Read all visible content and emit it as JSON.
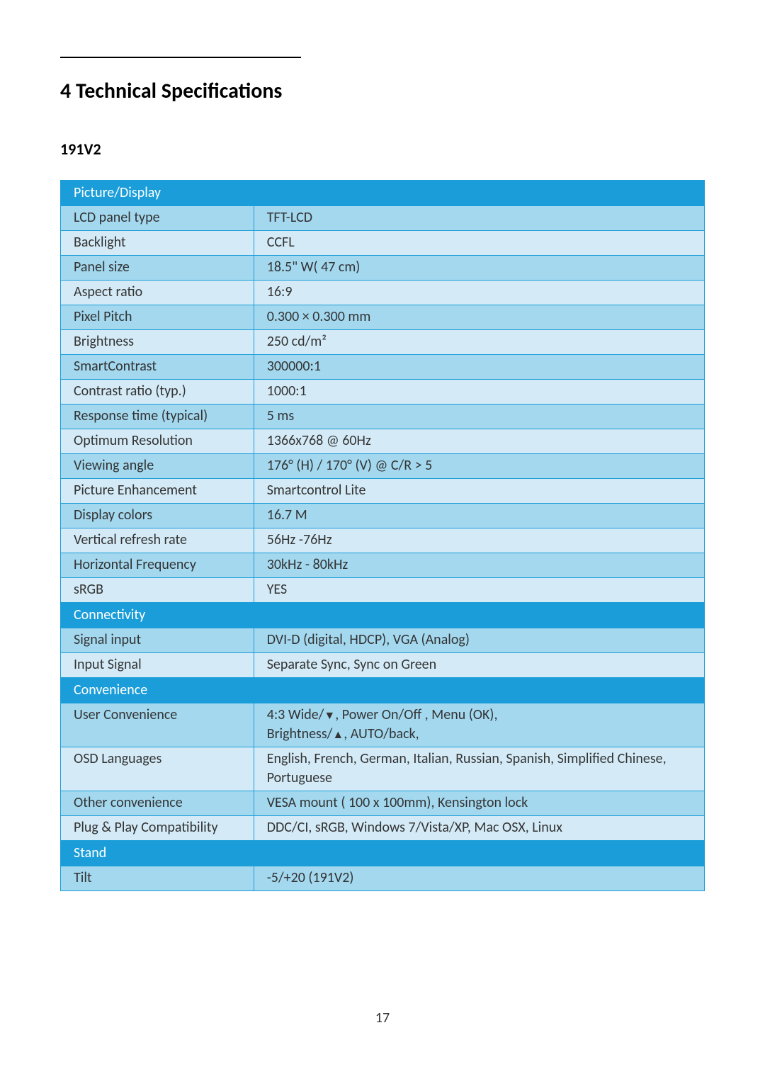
{
  "heading": "4  Technical Specifications",
  "model": "191V2",
  "pageNumber": "17",
  "colors": {
    "border": "#1a9dd9",
    "header_bg": "#1a9dd9",
    "header_text": "#ffffff",
    "row_odd_bg": "#a3d8ef",
    "row_even_bg": "#d4ebf7",
    "page_bg": "#ffffff"
  },
  "fontsize": {
    "heading": 30,
    "model": 22,
    "table": 20
  },
  "sections": [
    {
      "title": "Picture/Display",
      "rows": [
        {
          "label": "LCD panel type",
          "value": "TFT-LCD"
        },
        {
          "label": "Backlight",
          "value": "CCFL"
        },
        {
          "label": "Panel size",
          "value": "18.5\" W( 47 cm)"
        },
        {
          "label": "Aspect ratio",
          "value": "16:9"
        },
        {
          "label": "Pixel Pitch",
          "value": "0.300 × 0.300 mm"
        },
        {
          "label": "Brightness",
          "value": "250 cd/m²"
        },
        {
          "label": "SmartContrast",
          "value": "300000:1"
        },
        {
          "label": "Contrast ratio (typ.)",
          "value": "1000:1"
        },
        {
          "label": "Response time (typical)",
          "value": "5 ms"
        },
        {
          "label": "Optimum Resolution",
          "value": "1366x768 @ 60Hz"
        },
        {
          "label": "Viewing angle",
          "value": "176° (H) / 170° (V) @ C/R > 5"
        },
        {
          "label": "Picture Enhancement",
          "value": "Smartcontrol Lite"
        },
        {
          "label": "Display colors",
          "value": "16.7 M"
        },
        {
          "label": "Vertical refresh rate",
          "value": "56Hz -76Hz"
        },
        {
          "label": "Horizontal Frequency",
          "value": "30kHz - 80kHz"
        },
        {
          "label": "sRGB",
          "value": "YES"
        }
      ]
    },
    {
      "title": "Connectivity",
      "rows": [
        {
          "label": "Signal input",
          "value": "DVI-D (digital, HDCP), VGA (Analog)"
        },
        {
          "label": "Input Signal",
          "value": "Separate Sync, Sync on Green"
        }
      ]
    },
    {
      "title": "Convenience",
      "rows": [
        {
          "label": "User Convenience",
          "value_html": "4:3 Wide/<span class='tri-down'></span>, Power On/Off , Menu (OK),<br>Brightness/<span class='tri-up'></span>, AUTO/back,"
        },
        {
          "label": "OSD Languages",
          "value": "English, French, German, Italian, Russian, Spanish, Simplified Chinese, Portuguese"
        },
        {
          "label": "Other convenience",
          "value": "VESA mount ( 100 x 100mm), Kensington lock"
        },
        {
          "label": "Plug & Play Compatibility",
          "value": "DDC/CI, sRGB, Windows 7/Vista/XP, Mac OSX, Linux"
        }
      ]
    },
    {
      "title": "Stand",
      "rows": [
        {
          "label": "Tilt",
          "value": "-5/+20 (191V2)"
        }
      ]
    }
  ]
}
